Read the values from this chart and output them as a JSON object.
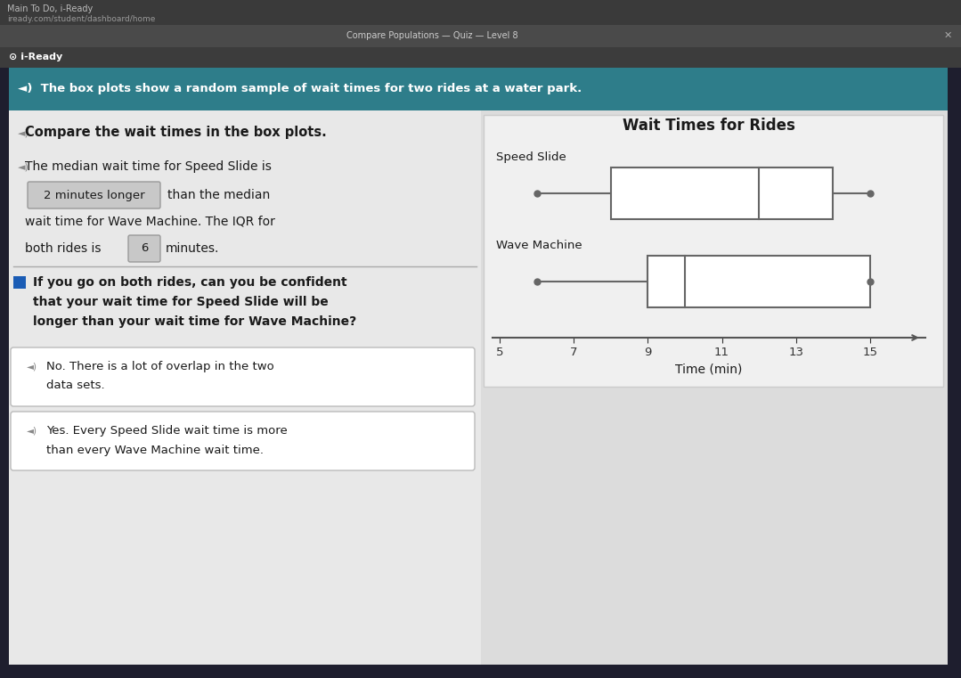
{
  "title": "Wait Times for Rides",
  "xlabel": "Time (min)",
  "speed_slide": {
    "label": "Speed Slide",
    "min": 6,
    "q1": 8,
    "median": 12,
    "q3": 14,
    "max": 15
  },
  "wave_machine": {
    "label": "Wave Machine",
    "min": 6,
    "q1": 9,
    "median": 10,
    "q3": 15,
    "max": 15
  },
  "xmin": 5,
  "xmax": 16,
  "xticks": [
    5,
    7,
    9,
    11,
    13,
    15
  ],
  "header_text": "The box plots show a random sample of wait times for two rides at a water park.",
  "line1": "Compare the wait times in the box plots.",
  "line2": "The median wait time for Speed Slide is",
  "answer1": "2 minutes longer",
  "line3": "than the median",
  "line4": "wait time for Wave Machine. The IQR for",
  "line5_pre": "both rides is",
  "answer2": "6",
  "line5_post": "minutes.",
  "question": "If you go on both rides, can you be confident\nthat your wait time for Speed Slide will be\nlonger than your wait time for Wave Machine?",
  "option1_line1": "No. There is a lot of overlap in the two",
  "option1_line2": "data sets.",
  "option2_line1": "Yes. Every Speed Slide wait time is more",
  "option2_line2": "than every Wave Machine wait time.",
  "browser_bar_color": "#3a3a3a",
  "tab_bar_color": "#4a4a4a",
  "browser_text_color": "#cccccc",
  "outer_dark_color": "#1e1e2e",
  "header_bg": "#2e7d8a",
  "content_bg": "#dcdcdc",
  "panel_bg": "#e8e8e8",
  "box_plot_bg": "#f0f0f0",
  "white": "#ffffff",
  "answer_box_bg": "#c8c8c8",
  "answer_box_border": "#999999",
  "option_box_bg": "#ffffff",
  "option_box_border": "#bbbbbb",
  "dark_text": "#1a1a1a",
  "gray_text": "#555555",
  "bullet_blue": "#1a5cb5",
  "box_edge": "#666666",
  "divider_color": "#aaaaaa"
}
